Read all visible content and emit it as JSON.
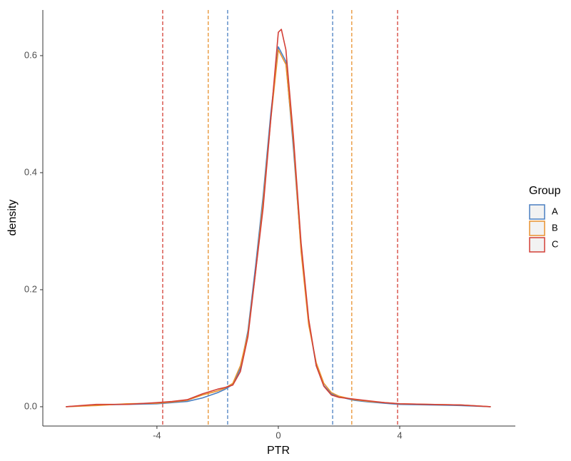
{
  "chart_data": {
    "type": "density",
    "x_label": "PTR",
    "y_label": "density",
    "legend_title": "Group",
    "legend_position": "right",
    "xlim": [
      -7.76,
      7.81
    ],
    "ylim": [
      -0.033,
      0.678
    ],
    "xticks": [
      -4,
      0,
      4
    ],
    "yticks": [
      {
        "value": 0,
        "label": "0.0"
      },
      0.2,
      0.4,
      0.6
    ],
    "grid": false,
    "x": [
      -7,
      -6,
      -5,
      -4,
      -3.5,
      -3,
      -2.5,
      -2,
      -1.75,
      -1.5,
      -1.25,
      -1,
      -0.75,
      -0.5,
      -0.25,
      0,
      0.1,
      0.25,
      0.5,
      0.75,
      1,
      1.25,
      1.5,
      1.75,
      2,
      2.5,
      3,
      3.5,
      4,
      5,
      6,
      7
    ],
    "series": [
      {
        "name": "A",
        "color": "#4a7fc1",
        "cutoffs": [
          -1.67,
          1.79
        ],
        "values": [
          0.0,
          0.003,
          0.004,
          0.005,
          0.007,
          0.009,
          0.015,
          0.024,
          0.03,
          0.038,
          0.065,
          0.13,
          0.24,
          0.36,
          0.5,
          0.615,
          0.605,
          0.59,
          0.44,
          0.27,
          0.145,
          0.07,
          0.036,
          0.022,
          0.017,
          0.011,
          0.008,
          0.006,
          0.004,
          0.003,
          0.002,
          0.0
        ]
      },
      {
        "name": "B",
        "color": "#e8912e",
        "cutoffs": [
          -2.31,
          2.42
        ],
        "values": [
          0.0,
          0.002,
          0.005,
          0.006,
          0.008,
          0.011,
          0.02,
          0.027,
          0.032,
          0.04,
          0.07,
          0.125,
          0.23,
          0.35,
          0.49,
          0.61,
          0.6,
          0.585,
          0.45,
          0.265,
          0.14,
          0.075,
          0.04,
          0.024,
          0.018,
          0.012,
          0.009,
          0.007,
          0.005,
          0.004,
          0.003,
          0.0
        ]
      },
      {
        "name": "C",
        "color": "#d33f36",
        "cutoffs": [
          -3.81,
          3.93
        ],
        "values": [
          0.0,
          0.004,
          0.004,
          0.007,
          0.009,
          0.012,
          0.022,
          0.03,
          0.033,
          0.037,
          0.06,
          0.12,
          0.23,
          0.34,
          0.49,
          0.64,
          0.645,
          0.61,
          0.46,
          0.28,
          0.15,
          0.07,
          0.035,
          0.02,
          0.016,
          0.013,
          0.01,
          0.007,
          0.005,
          0.004,
          0.003,
          0.0
        ]
      }
    ]
  }
}
